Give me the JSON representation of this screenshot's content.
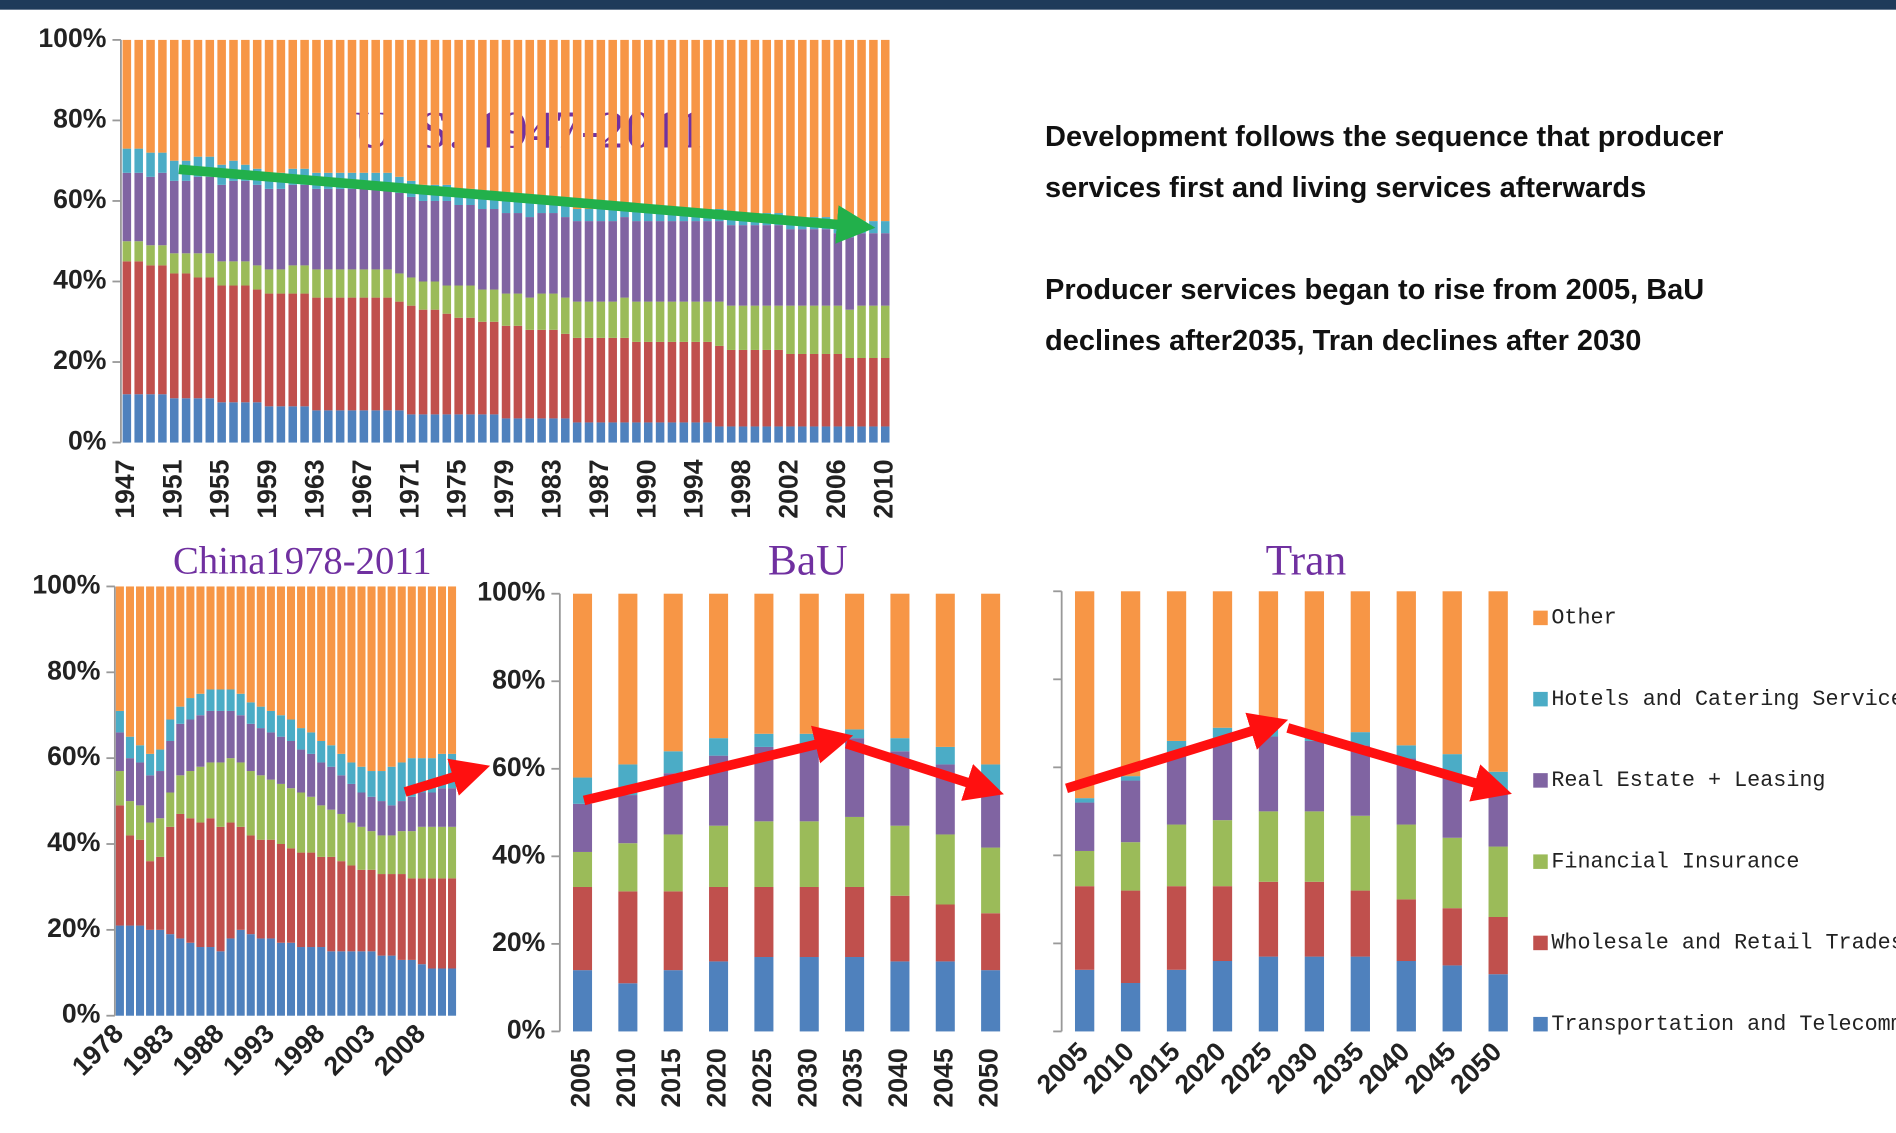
{
  "notes": [
    "Development follows the sequence that producer services first and living services afterwards",
    "Producer services began to rise from 2005, BaU declines after2035, Tran declines after 2030"
  ],
  "chart_data": [
    {
      "type": "bar",
      "stacked": true,
      "title": "U. S. 1947-2011",
      "categories": [
        "1947",
        null,
        null,
        null,
        "1951",
        null,
        null,
        null,
        "1955",
        null,
        null,
        null,
        "1959",
        null,
        null,
        null,
        "1963",
        null,
        null,
        null,
        "1967",
        null,
        null,
        null,
        "1971",
        null,
        null,
        null,
        "1975",
        null,
        null,
        null,
        "1979",
        null,
        null,
        null,
        "1983",
        null,
        null,
        null,
        "1987",
        null,
        null,
        null,
        "1990",
        null,
        null,
        null,
        "1994",
        null,
        null,
        null,
        "1998",
        null,
        null,
        null,
        "2002",
        null,
        null,
        null,
        "2006",
        null,
        null,
        null,
        "2010"
      ],
      "ylim": [
        0,
        100
      ],
      "yticks": [
        {
          "value": 0,
          "label": "0%"
        },
        {
          "value": 20,
          "label": "20%"
        },
        {
          "value": 40,
          "label": "40%"
        },
        {
          "value": 60,
          "label": "60%"
        },
        {
          "value": 80,
          "label": "80%"
        },
        {
          "value": 100,
          "label": "100%"
        }
      ],
      "series": [
        {
          "name": "Transportation and Telecommunication",
          "color": "#4f81bd",
          "values": [
            12,
            12,
            12,
            12,
            11,
            11,
            11,
            11,
            10,
            10,
            10,
            10,
            9,
            9,
            9,
            9,
            8,
            8,
            8,
            8,
            8,
            8,
            8,
            8,
            7,
            7,
            7,
            7,
            7,
            7,
            7,
            7,
            6,
            6,
            6,
            6,
            6,
            6,
            5,
            5,
            5,
            5,
            5,
            5,
            5,
            5,
            5,
            5,
            5,
            5,
            4,
            4,
            4,
            4,
            4,
            4,
            4,
            4,
            4,
            4,
            4,
            4,
            4,
            4,
            4
          ]
        },
        {
          "name": "Wholesale and Retail Trades",
          "color": "#c0504d",
          "values": [
            33,
            33,
            32,
            32,
            31,
            31,
            30,
            30,
            29,
            29,
            29,
            28,
            28,
            28,
            28,
            28,
            28,
            28,
            28,
            28,
            28,
            28,
            28,
            27,
            27,
            26,
            26,
            25,
            24,
            24,
            23,
            23,
            23,
            23,
            22,
            22,
            22,
            21,
            21,
            21,
            21,
            21,
            21,
            20,
            20,
            20,
            20,
            20,
            20,
            20,
            20,
            19,
            19,
            19,
            19,
            19,
            18,
            18,
            18,
            18,
            18,
            17,
            17,
            17,
            17
          ]
        },
        {
          "name": "Financial Insurance",
          "color": "#9bbb59",
          "values": [
            5,
            5,
            5,
            5,
            5,
            5,
            6,
            6,
            6,
            6,
            6,
            6,
            6,
            6,
            7,
            7,
            7,
            7,
            7,
            7,
            7,
            7,
            7,
            7,
            7,
            7,
            7,
            7,
            8,
            8,
            8,
            8,
            8,
            8,
            8,
            9,
            9,
            9,
            9,
            9,
            9,
            9,
            10,
            10,
            10,
            10,
            10,
            10,
            10,
            10,
            11,
            11,
            11,
            11,
            11,
            11,
            12,
            12,
            12,
            12,
            12,
            12,
            13,
            13,
            13
          ]
        },
        {
          "name": "Real Estate + Leasing",
          "color": "#8064a2",
          "values": [
            17,
            17,
            17,
            18,
            18,
            18,
            19,
            19,
            19,
            20,
            20,
            20,
            20,
            20,
            20,
            20,
            20,
            20,
            20,
            20,
            20,
            20,
            20,
            20,
            20,
            20,
            20,
            21,
            20,
            20,
            20,
            20,
            20,
            20,
            20,
            20,
            20,
            20,
            20,
            20,
            20,
            20,
            20,
            20,
            20,
            20,
            20,
            20,
            20,
            20,
            20,
            20,
            20,
            20,
            20,
            20,
            19,
            19,
            19,
            19,
            18,
            18,
            18,
            18,
            18
          ]
        },
        {
          "name": "Hotels and Catering Services",
          "color": "#4bacc6",
          "values": [
            6,
            6,
            6,
            5,
            5,
            5,
            5,
            5,
            5,
            5,
            4,
            4,
            4,
            4,
            4,
            4,
            4,
            4,
            4,
            4,
            4,
            4,
            4,
            4,
            4,
            4,
            4,
            4,
            4,
            4,
            4,
            4,
            4,
            4,
            4,
            4,
            3,
            3,
            3,
            3,
            3,
            3,
            3,
            3,
            3,
            3,
            3,
            3,
            3,
            3,
            3,
            3,
            3,
            3,
            3,
            3,
            3,
            3,
            3,
            3,
            3,
            3,
            3,
            3,
            3
          ]
        },
        {
          "name": "Other",
          "color": "#f79646",
          "values": [
            27,
            27,
            28,
            28,
            30,
            30,
            29,
            29,
            31,
            30,
            31,
            32,
            33,
            33,
            32,
            32,
            33,
            33,
            33,
            33,
            33,
            33,
            33,
            34,
            35,
            36,
            36,
            36,
            37,
            37,
            38,
            38,
            39,
            39,
            40,
            39,
            40,
            41,
            42,
            42,
            42,
            42,
            41,
            42,
            42,
            42,
            42,
            42,
            42,
            42,
            42,
            43,
            43,
            43,
            43,
            43,
            44,
            44,
            44,
            44,
            45,
            46,
            45,
            45,
            45
          ]
        }
      ]
    },
    {
      "type": "bar",
      "stacked": true,
      "title": "China1978-2011",
      "categories": [
        "1978",
        null,
        null,
        null,
        null,
        "1983",
        null,
        null,
        null,
        null,
        "1988",
        null,
        null,
        null,
        null,
        "1993",
        null,
        null,
        null,
        null,
        "1998",
        null,
        null,
        null,
        null,
        "2003",
        null,
        null,
        null,
        null,
        "2008",
        null,
        null,
        null
      ],
      "ylim": [
        0,
        100
      ],
      "yticks": [
        {
          "value": 0,
          "label": "0%"
        },
        {
          "value": 20,
          "label": "20%"
        },
        {
          "value": 40,
          "label": "40%"
        },
        {
          "value": 60,
          "label": "60%"
        },
        {
          "value": 80,
          "label": "80%"
        },
        {
          "value": 100,
          "label": "100%"
        }
      ],
      "series": [
        {
          "name": "Transportation and Telecommunication",
          "color": "#4f81bd",
          "values": [
            21,
            21,
            21,
            20,
            20,
            19,
            18,
            17,
            16,
            16,
            15,
            18,
            20,
            19,
            18,
            18,
            17,
            17,
            16,
            16,
            16,
            15,
            15,
            15,
            15,
            15,
            14,
            14,
            13,
            13,
            12,
            11,
            11,
            11
          ]
        },
        {
          "name": "Wholesale and Retail Trades",
          "color": "#c0504d",
          "values": [
            28,
            21,
            20,
            16,
            17,
            25,
            29,
            29,
            29,
            30,
            29,
            27,
            24,
            23,
            23,
            23,
            23,
            22,
            22,
            22,
            21,
            22,
            21,
            20,
            19,
            19,
            19,
            19,
            20,
            19,
            20,
            21,
            21,
            21
          ]
        },
        {
          "name": "Financial Insurance",
          "color": "#9bbb59",
          "values": [
            8,
            8,
            8,
            9,
            9,
            8,
            9,
            11,
            13,
            13,
            15,
            15,
            15,
            15,
            15,
            14,
            14,
            14,
            14,
            13,
            12,
            11,
            11,
            10,
            10,
            9,
            9,
            9,
            10,
            11,
            12,
            12,
            12,
            12
          ]
        },
        {
          "name": "Real Estate + Leasing",
          "color": "#8064a2",
          "values": [
            9,
            10,
            10,
            11,
            11,
            12,
            12,
            12,
            12,
            12,
            12,
            11,
            11,
            11,
            11,
            11,
            11,
            11,
            10,
            10,
            10,
            10,
            9,
            9,
            8,
            8,
            8,
            7,
            7,
            8,
            8,
            8,
            9,
            9
          ]
        },
        {
          "name": "Hotels and Catering Services",
          "color": "#4bacc6",
          "values": [
            5,
            5,
            4,
            5,
            5,
            5,
            4,
            5,
            5,
            5,
            5,
            5,
            5,
            5,
            5,
            5,
            5,
            5,
            5,
            5,
            5,
            5,
            5,
            5,
            6,
            6,
            7,
            9,
            9,
            9,
            8,
            8,
            8,
            8
          ]
        },
        {
          "name": "Other",
          "color": "#f79646",
          "values": [
            29,
            35,
            37,
            39,
            38,
            31,
            28,
            26,
            25,
            24,
            24,
            24,
            25,
            27,
            28,
            29,
            30,
            31,
            33,
            34,
            36,
            37,
            39,
            41,
            42,
            43,
            43,
            42,
            41,
            40,
            40,
            40,
            39,
            39
          ]
        }
      ]
    },
    {
      "type": "bar",
      "stacked": true,
      "title": "BaU",
      "categories": [
        "2005",
        "2010",
        "2015",
        "2020",
        "2025",
        "2030",
        "2035",
        "2040",
        "2045",
        "2050"
      ],
      "ylim": [
        0,
        100
      ],
      "yticks": [
        {
          "value": 0,
          "label": "0%"
        },
        {
          "value": 20,
          "label": "20%"
        },
        {
          "value": 40,
          "label": "40%"
        },
        {
          "value": 60,
          "label": "60%"
        },
        {
          "value": 80,
          "label": "80%"
        },
        {
          "value": 100,
          "label": "100%"
        }
      ],
      "series": [
        {
          "name": "Transportation and Telecommunication",
          "color": "#4f81bd",
          "values": [
            14,
            11,
            14,
            16,
            17,
            17,
            17,
            16,
            16,
            14
          ]
        },
        {
          "name": "Wholesale and Retail Trades",
          "color": "#c0504d",
          "values": [
            19,
            21,
            18,
            17,
            16,
            16,
            16,
            15,
            13,
            13
          ]
        },
        {
          "name": "Financial Insurance",
          "color": "#9bbb59",
          "values": [
            8,
            11,
            13,
            14,
            15,
            15,
            16,
            16,
            16,
            15
          ]
        },
        {
          "name": "Real Estate + Leasing",
          "color": "#8064a2",
          "values": [
            11,
            11,
            14,
            16,
            17,
            17,
            18,
            17,
            16,
            13
          ]
        },
        {
          "name": "Hotels and Catering Services",
          "color": "#4bacc6",
          "values": [
            6,
            7,
            5,
            4,
            3,
            3,
            2,
            3,
            4,
            6
          ]
        },
        {
          "name": "Other",
          "color": "#f79646",
          "values": [
            42,
            39,
            36,
            33,
            32,
            32,
            31,
            33,
            35,
            39
          ]
        }
      ]
    },
    {
      "type": "bar",
      "stacked": true,
      "title": "Tran",
      "legend": "right",
      "categories": [
        "2005",
        "2010",
        "2015",
        "2020",
        "2025",
        "2030",
        "2035",
        "2040",
        "2045",
        "2050"
      ],
      "ylim": [
        0,
        100
      ],
      "yticks": [
        0,
        20,
        40,
        60,
        80,
        100
      ],
      "series": [
        {
          "name": "Transportation and Telecommunication",
          "color": "#4f81bd",
          "values": [
            14,
            11,
            14,
            16,
            17,
            17,
            17,
            16,
            15,
            13
          ]
        },
        {
          "name": "Wholesale and Retail Trades",
          "color": "#c0504d",
          "values": [
            19,
            21,
            19,
            17,
            17,
            17,
            15,
            14,
            13,
            13
          ]
        },
        {
          "name": "Financial Insurance",
          "color": "#9bbb59",
          "values": [
            8,
            11,
            14,
            15,
            16,
            16,
            17,
            17,
            16,
            16
          ]
        },
        {
          "name": "Real Estate + Leasing",
          "color": "#8064a2",
          "values": [
            11,
            14,
            16,
            18,
            17,
            16,
            16,
            15,
            14,
            12
          ]
        },
        {
          "name": "Hotels and Catering Services",
          "color": "#4bacc6",
          "values": [
            1,
            1,
            3,
            3,
            2,
            2,
            3,
            3,
            5,
            5
          ]
        },
        {
          "name": "Other",
          "color": "#f79646",
          "values": [
            47,
            42,
            34,
            31,
            31,
            32,
            32,
            35,
            37,
            41
          ]
        }
      ]
    }
  ]
}
